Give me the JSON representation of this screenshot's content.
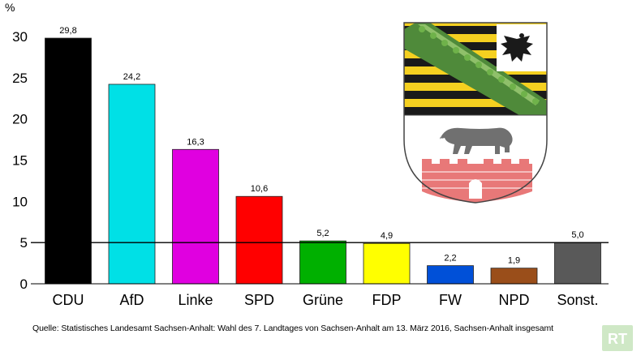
{
  "chart_data": {
    "type": "bar",
    "unit": "%",
    "categories": [
      "CDU",
      "AfD",
      "Linke",
      "SPD",
      "Grüne",
      "FDP",
      "FW",
      "NPD",
      "Sonst."
    ],
    "values": [
      29.8,
      24.2,
      16.3,
      10.6,
      5.2,
      4.9,
      2.2,
      1.9,
      5.0
    ],
    "value_labels": [
      "29,8",
      "24,2",
      "16,3",
      "10,6",
      "5,2",
      "4,9",
      "2,2",
      "1,9",
      "5,0"
    ],
    "colors": [
      "#000000",
      "#00e0e6",
      "#e000e0",
      "#ff0000",
      "#00b000",
      "#ffff00",
      "#0050d8",
      "#9a4e1a",
      "#595959"
    ],
    "yticks": [
      0,
      5,
      10,
      15,
      20,
      25,
      30
    ],
    "ylim": [
      0,
      30
    ],
    "threshold": 5,
    "grid": false
  },
  "source_text": "Quelle: Statistisches Landesamt Sachsen-Anhalt: Wahl des 7. Landtages von Sachsen-Anhalt am 13. März 2016, Sachsen-Anhalt insgesamt",
  "logo_text": "RT",
  "coat_of_arms": "sachsen-anhalt-coat-of-arms"
}
